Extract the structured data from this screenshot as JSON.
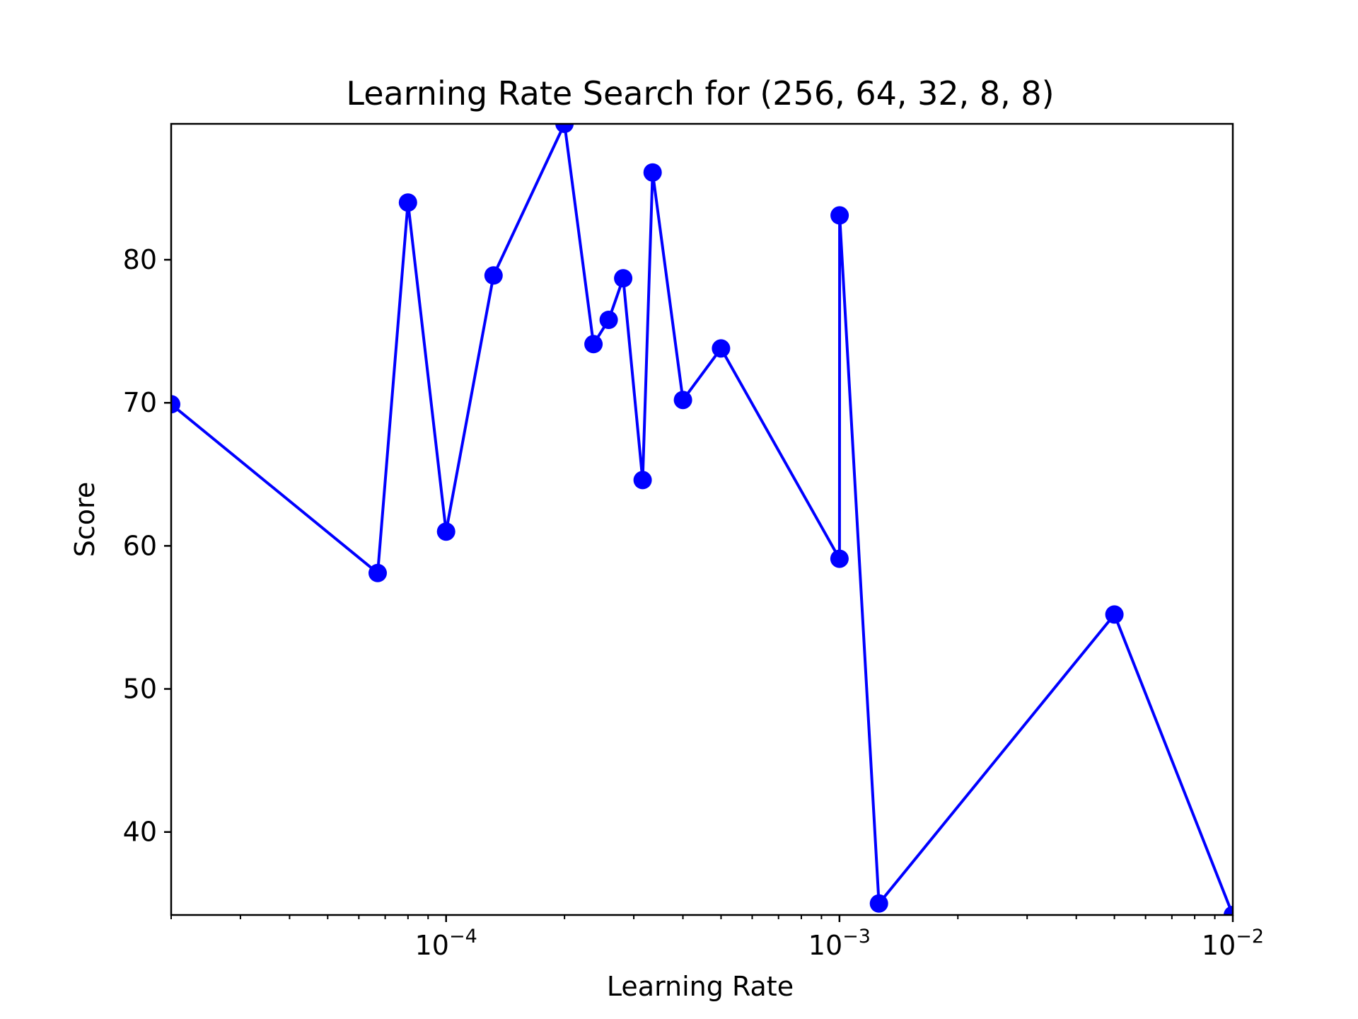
{
  "chart_data": {
    "type": "line",
    "title": "Learning Rate Search for (256, 64, 32, 8, 8)",
    "xlabel": "Learning Rate",
    "ylabel": "Score",
    "xscale": "log",
    "xlim": [
      2e-05,
      0.01
    ],
    "ylim": [
      34.2,
      89.5
    ],
    "grid": false,
    "legend": "none",
    "x_ticks": [
      {
        "value": 0.0001,
        "base": "10",
        "exp": "−4"
      },
      {
        "value": 0.001,
        "base": "10",
        "exp": "−3"
      },
      {
        "value": 0.01,
        "base": "10",
        "exp": "−2"
      }
    ],
    "y_ticks": [
      40,
      50,
      60,
      70,
      80
    ],
    "series": [
      {
        "color": "#0000ff",
        "marker": "circle",
        "points": [
          {
            "x": 2e-05,
            "y": 69.9
          },
          {
            "x": 6.7e-05,
            "y": 58.1
          },
          {
            "x": 8e-05,
            "y": 84.0
          },
          {
            "x": 0.0001,
            "y": 61.0
          },
          {
            "x": 0.000132,
            "y": 78.9
          },
          {
            "x": 0.0002,
            "y": 89.5
          },
          {
            "x": 0.000237,
            "y": 74.1
          },
          {
            "x": 0.000259,
            "y": 75.8
          },
          {
            "x": 0.000282,
            "y": 78.7
          },
          {
            "x": 0.000316,
            "y": 64.6
          },
          {
            "x": 0.000335,
            "y": 86.1
          },
          {
            "x": 0.0004,
            "y": 70.2
          },
          {
            "x": 0.0005,
            "y": 73.8
          },
          {
            "x": 0.001,
            "y": 59.1
          },
          {
            "x": 0.001001,
            "y": 83.1
          },
          {
            "x": 0.00126,
            "y": 35.0
          },
          {
            "x": 0.005,
            "y": 55.2
          },
          {
            "x": 0.01,
            "y": 34.2
          }
        ]
      }
    ]
  }
}
